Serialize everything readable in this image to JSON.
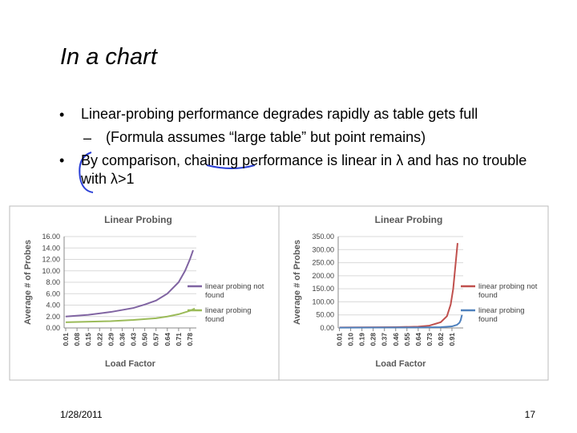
{
  "slide": {
    "title": "In a chart",
    "bullets": [
      "Linear-probing performance degrades rapidly as table gets full",
      "(Formula assumes “large table” but point remains)",
      "By comparison, chaining performance is linear in λ and has no trouble with λ>1"
    ],
    "date": "1/28/2011",
    "page": "17"
  },
  "chart_data": [
    {
      "type": "line",
      "title": "Linear Probing",
      "x_label": "Load Factor",
      "y_label": "Average # of Probes",
      "xlim": [
        0,
        0.82
      ],
      "xticks": [
        0.01,
        0.08,
        0.15,
        0.22,
        0.29,
        0.36,
        0.43,
        {
          "value": 0.5,
          "label": "0.50"
        },
        0.57,
        0.64,
        0.71,
        0.78
      ],
      "ylim": [
        0,
        16
      ],
      "yticks": [
        {
          "value": 0,
          "label": "0.00"
        },
        {
          "value": 2,
          "label": "2.00"
        },
        {
          "value": 4,
          "label": "4.00"
        },
        {
          "value": 6,
          "label": "6.00"
        },
        {
          "value": 8,
          "label": "8.00"
        },
        {
          "value": 10,
          "label": "10.00"
        },
        {
          "value": 12,
          "label": "12.00"
        },
        {
          "value": 14,
          "label": "14.00"
        },
        {
          "value": 16,
          "label": "16.00"
        }
      ],
      "grid": true,
      "series": [
        {
          "name": "linear probing not found",
          "color": "#8064a2",
          "x": [
            0.01,
            0.15,
            0.29,
            0.43,
            0.5,
            0.57,
            0.64,
            0.71,
            0.75,
            0.78,
            0.8
          ],
          "values": [
            2.0,
            2.3,
            2.8,
            3.5,
            4.1,
            4.8,
            6.0,
            8.0,
            10.0,
            12.0,
            13.6
          ]
        },
        {
          "name": "linear probing found",
          "color": "#9bbb59",
          "x": [
            0.01,
            0.29,
            0.43,
            0.57,
            0.64,
            0.71,
            0.78,
            0.81
          ],
          "values": [
            1.0,
            1.2,
            1.4,
            1.7,
            2.0,
            2.4,
            3.0,
            3.4
          ]
        }
      ]
    },
    {
      "type": "line",
      "title": "Linear Probing",
      "x_label": "Load Factor",
      "y_label": "Average # of Probes",
      "xlim": [
        0,
        1.0
      ],
      "xticks": [
        0.01,
        {
          "value": 0.1,
          "label": "0.10"
        },
        0.19,
        0.28,
        0.37,
        0.46,
        0.55,
        0.64,
        0.73,
        0.82,
        0.91
      ],
      "ylim": [
        0,
        350
      ],
      "yticks": [
        {
          "value": 0,
          "label": "0.00"
        },
        {
          "value": 50,
          "label": "50.00"
        },
        {
          "value": 100,
          "label": "100.00"
        },
        {
          "value": 150,
          "label": "150.00"
        },
        {
          "value": 200,
          "label": "200.00"
        },
        {
          "value": 250,
          "label": "250.00"
        },
        {
          "value": 300,
          "label": "300.00"
        },
        {
          "value": 350,
          "label": "350.00"
        }
      ],
      "grid": true,
      "series": [
        {
          "name": "linear probing not found",
          "color": "#c0504d",
          "x": [
            0.01,
            0.46,
            0.64,
            0.73,
            0.82,
            0.87,
            0.9,
            0.92,
            0.94,
            0.955
          ],
          "values": [
            2,
            3,
            5,
            9,
            22,
            45,
            90,
            150,
            250,
            325
          ]
        },
        {
          "name": "linear probing found",
          "color": "#4f81bd",
          "x": [
            0.01,
            0.64,
            0.82,
            0.91,
            0.95,
            0.97,
            0.98,
            0.99
          ],
          "values": [
            1,
            2,
            3,
            6,
            12,
            20,
            30,
            50
          ]
        }
      ]
    }
  ]
}
